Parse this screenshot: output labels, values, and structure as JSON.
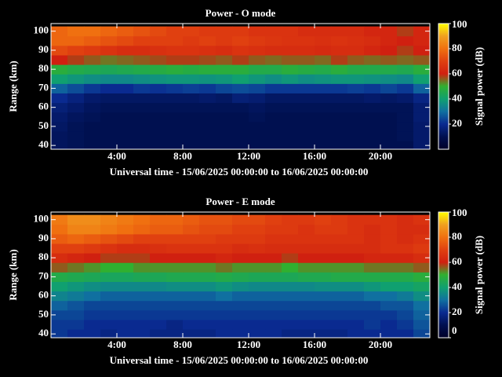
{
  "chart_data": [
    {
      "type": "heatmap",
      "title": "Power - O mode",
      "xlabel": "Universal time - 15/06/2025 00:00:00 to 16/06/2025 00:00:00",
      "ylabel": "Range (km)",
      "x": [
        0.5,
        1.5,
        2.5,
        3.5,
        4.5,
        5.5,
        6.5,
        7.5,
        8.5,
        9.5,
        10.5,
        11.5,
        12.5,
        13.5,
        14.5,
        15.5,
        16.5,
        17.5,
        18.5,
        19.5,
        20.5,
        21.5,
        22.5
      ],
      "y": [
        40,
        45,
        50,
        55,
        60,
        65,
        70,
        75,
        80,
        85,
        90,
        95,
        100
      ],
      "values": [
        [
          12,
          11,
          10,
          10,
          10,
          10,
          10,
          10,
          10,
          10,
          10,
          10,
          10,
          10,
          10,
          10,
          10,
          10,
          10,
          10,
          10,
          10,
          14
        ],
        [
          12,
          11,
          10,
          10,
          10,
          10,
          10,
          10,
          10,
          10,
          10,
          10,
          10,
          10,
          10,
          10,
          10,
          10,
          10,
          10,
          10,
          11,
          14
        ],
        [
          13,
          11,
          10,
          10,
          10,
          10,
          10,
          10,
          10,
          10,
          10,
          10,
          10,
          10,
          10,
          10,
          10,
          10,
          10,
          10,
          10,
          11,
          14
        ],
        [
          14,
          12,
          11,
          10,
          10,
          10,
          10,
          10,
          10,
          10,
          10,
          10,
          11,
          10,
          10,
          10,
          10,
          10,
          10,
          10,
          10,
          11,
          15
        ],
        [
          16,
          14,
          12,
          11,
          11,
          11,
          11,
          11,
          11,
          11,
          11,
          11,
          12,
          11,
          11,
          11,
          11,
          11,
          11,
          11,
          11,
          11,
          15
        ],
        [
          20,
          17,
          14,
          13,
          13,
          13,
          13,
          13,
          13,
          14,
          13,
          16,
          15,
          13,
          13,
          13,
          13,
          13,
          13,
          14,
          13,
          14,
          18
        ],
        [
          28,
          25,
          22,
          20,
          20,
          22,
          21,
          22,
          23,
          22,
          24,
          25,
          24,
          22,
          22,
          22,
          22,
          22,
          23,
          22,
          24,
          22,
          28
        ],
        [
          40,
          38,
          36,
          35,
          35,
          36,
          37,
          38,
          38,
          37,
          38,
          40,
          38,
          36,
          38,
          36,
          37,
          38,
          38,
          37,
          36,
          35,
          40
        ],
        [
          48,
          46,
          45,
          44,
          45,
          46,
          47,
          48,
          47,
          48,
          48,
          48,
          46,
          46,
          48,
          47,
          46,
          48,
          46,
          46,
          46,
          45,
          48
        ],
        [
          60,
          58,
          56,
          54,
          55,
          56,
          57,
          58,
          58,
          57,
          56,
          58,
          56,
          55,
          56,
          56,
          55,
          58,
          56,
          55,
          56,
          55,
          56
        ],
        [
          72,
          70,
          68,
          66,
          64,
          64,
          65,
          66,
          66,
          65,
          64,
          66,
          65,
          64,
          64,
          64,
          63,
          64,
          64,
          62,
          60,
          58,
          60
        ],
        [
          78,
          78,
          76,
          74,
          72,
          70,
          70,
          70,
          68,
          70,
          68,
          70,
          68,
          67,
          66,
          66,
          65,
          66,
          65,
          64,
          62,
          60,
          62
        ],
        [
          78,
          80,
          80,
          78,
          76,
          74,
          72,
          70,
          70,
          68,
          68,
          68,
          66,
          66,
          66,
          64,
          64,
          64,
          64,
          62,
          62,
          58,
          62
        ]
      ],
      "xlim": [
        0,
        23
      ],
      "ylim": [
        38,
        104
      ],
      "xticks": [
        {
          "value": 4,
          "label": "4:00"
        },
        {
          "value": 8,
          "label": "8:00"
        },
        {
          "value": 12,
          "label": "12:00"
        },
        {
          "value": 16,
          "label": "16:00"
        },
        {
          "value": 20,
          "label": "20:00"
        }
      ],
      "yticks": [
        40,
        50,
        60,
        70,
        80,
        90,
        100
      ],
      "colorbar": {
        "label": "Signal power (dB)",
        "lim": [
          0,
          100
        ],
        "ticks": [
          20,
          40,
          60,
          80,
          100
        ]
      },
      "colorscale": [
        "#000028",
        "#001050",
        "#0a2a90",
        "#1070a0",
        "#10a070",
        "#30b030",
        "#d02010",
        "#e04010",
        "#f07010",
        "#f0a020",
        "#ffff00"
      ]
    },
    {
      "type": "heatmap",
      "title": "Power - E mode",
      "xlabel": "Universal time - 15/06/2025 00:00:00 to 16/06/2025 00:00:00",
      "ylabel": "Range (km)",
      "x": [
        0.5,
        1.5,
        2.5,
        3.5,
        4.5,
        5.5,
        6.5,
        7.5,
        8.5,
        9.5,
        10.5,
        11.5,
        12.5,
        13.5,
        14.5,
        15.5,
        16.5,
        17.5,
        18.5,
        19.5,
        20.5,
        21.5,
        22.5
      ],
      "y": [
        40,
        45,
        50,
        55,
        60,
        65,
        70,
        75,
        80,
        85,
        90,
        95,
        100
      ],
      "values": [
        [
          22,
          20,
          20,
          18,
          20,
          20,
          18,
          18,
          18,
          18,
          20,
          20,
          20,
          20,
          18,
          18,
          18,
          18,
          20,
          20,
          20,
          20,
          24
        ],
        [
          22,
          22,
          20,
          20,
          20,
          20,
          20,
          18,
          20,
          20,
          20,
          20,
          20,
          20,
          20,
          20,
          20,
          20,
          20,
          22,
          20,
          22,
          26
        ],
        [
          24,
          24,
          22,
          22,
          22,
          22,
          22,
          22,
          22,
          22,
          22,
          22,
          22,
          22,
          22,
          22,
          22,
          22,
          22,
          22,
          22,
          24,
          28
        ],
        [
          28,
          26,
          24,
          24,
          24,
          24,
          24,
          24,
          24,
          24,
          24,
          24,
          24,
          24,
          24,
          24,
          24,
          24,
          24,
          24,
          26,
          26,
          30
        ],
        [
          34,
          32,
          30,
          28,
          28,
          28,
          28,
          28,
          28,
          28,
          30,
          28,
          28,
          28,
          28,
          28,
          28,
          28,
          28,
          30,
          30,
          32,
          36
        ],
        [
          40,
          38,
          36,
          35,
          35,
          35,
          35,
          36,
          36,
          36,
          38,
          36,
          35,
          35,
          35,
          35,
          36,
          36,
          36,
          38,
          40,
          40,
          42
        ],
        [
          46,
          45,
          44,
          43,
          43,
          44,
          44,
          45,
          45,
          45,
          46,
          45,
          44,
          44,
          44,
          45,
          45,
          46,
          46,
          46,
          46,
          46,
          48
        ],
        [
          56,
          54,
          52,
          50,
          50,
          52,
          52,
          52,
          52,
          52,
          54,
          52,
          52,
          52,
          50,
          52,
          52,
          52,
          52,
          54,
          54,
          54,
          56
        ],
        [
          64,
          62,
          60,
          58,
          58,
          58,
          60,
          60,
          60,
          60,
          62,
          60,
          60,
          60,
          58,
          60,
          60,
          60,
          60,
          62,
          62,
          62,
          64
        ],
        [
          70,
          70,
          68,
          66,
          64,
          64,
          65,
          66,
          66,
          66,
          66,
          64,
          65,
          64,
          64,
          64,
          64,
          64,
          64,
          64,
          66,
          66,
          68
        ],
        [
          76,
          78,
          76,
          74,
          72,
          70,
          70,
          70,
          70,
          70,
          68,
          68,
          68,
          66,
          66,
          66,
          66,
          66,
          66,
          64,
          66,
          64,
          66
        ],
        [
          80,
          84,
          84,
          82,
          80,
          78,
          76,
          76,
          74,
          72,
          72,
          70,
          70,
          68,
          68,
          66,
          68,
          68,
          66,
          64,
          66,
          64,
          64
        ],
        [
          82,
          86,
          86,
          84,
          82,
          80,
          78,
          78,
          76,
          74,
          74,
          72,
          72,
          70,
          68,
          68,
          70,
          68,
          66,
          66,
          66,
          64,
          66
        ]
      ],
      "xlim": [
        0,
        23
      ],
      "ylim": [
        38,
        104
      ],
      "xticks": [
        {
          "value": 4,
          "label": "4:00"
        },
        {
          "value": 8,
          "label": "8:00"
        },
        {
          "value": 12,
          "label": "12:00"
        },
        {
          "value": 16,
          "label": "16:00"
        },
        {
          "value": 20,
          "label": "20:00"
        }
      ],
      "yticks": [
        40,
        50,
        60,
        70,
        80,
        90,
        100
      ],
      "colorbar": {
        "label": "Signal power (dB)",
        "lim": [
          0,
          100
        ],
        "ticks": [
          0,
          20,
          40,
          60,
          80,
          100
        ]
      },
      "colorscale": [
        "#000028",
        "#001050",
        "#0a2a90",
        "#1070a0",
        "#10a070",
        "#30b030",
        "#d02010",
        "#e04010",
        "#f07010",
        "#f0a020",
        "#ffff00"
      ]
    }
  ]
}
